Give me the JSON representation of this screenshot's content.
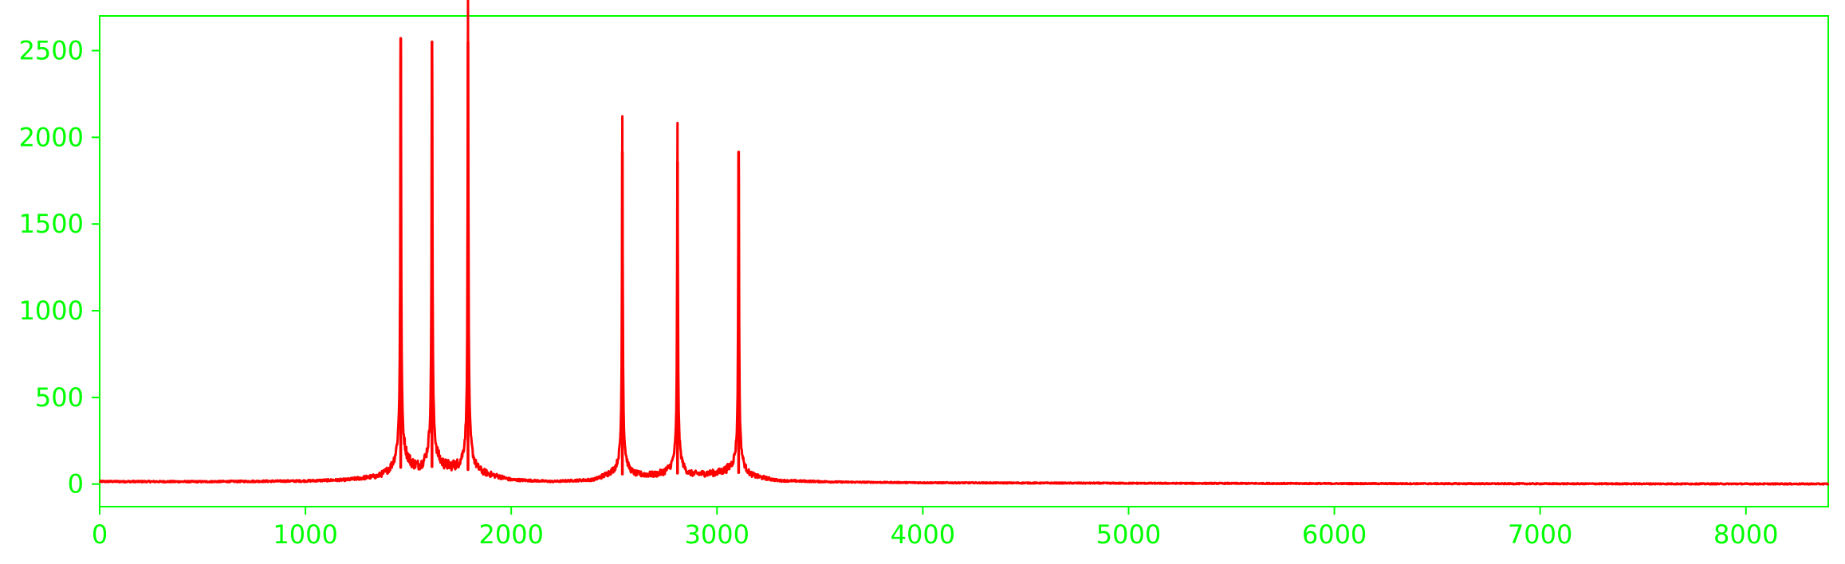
{
  "chart_data": {
    "type": "line",
    "title": "",
    "xlabel": "",
    "ylabel": "",
    "xlim": [
      0,
      8400
    ],
    "ylim": [
      -130,
      2700
    ],
    "x_ticks": [
      0,
      1000,
      2000,
      3000,
      4000,
      5000,
      6000,
      7000,
      8000
    ],
    "y_ticks": [
      0,
      500,
      1000,
      1500,
      2000,
      2500
    ],
    "grid": false,
    "legend": "none",
    "colors": {
      "line": "#ff0000",
      "axes": "#00ff00",
      "background": "#ffffff"
    },
    "series": [
      {
        "baseline": [
          [
            0,
            15
          ],
          [
            500,
            14
          ],
          [
            1000,
            18
          ],
          [
            1200,
            25
          ],
          [
            1350,
            45
          ],
          [
            1420,
            80
          ],
          [
            1500,
            110
          ],
          [
            1560,
            95
          ],
          [
            1650,
            105
          ],
          [
            1720,
            100
          ],
          [
            1850,
            70
          ],
          [
            2000,
            25
          ],
          [
            2200,
            15
          ],
          [
            2400,
            25
          ],
          [
            2480,
            60
          ],
          [
            2600,
            55
          ],
          [
            2700,
            55
          ],
          [
            2760,
            70
          ],
          [
            2860,
            55
          ],
          [
            3000,
            65
          ],
          [
            3060,
            80
          ],
          [
            3160,
            50
          ],
          [
            3300,
            20
          ],
          [
            3600,
            12
          ],
          [
            4000,
            8
          ],
          [
            5000,
            5
          ],
          [
            6000,
            3
          ],
          [
            7000,
            2
          ],
          [
            8400,
            1
          ]
        ],
        "peaks": [
          {
            "x": 1463,
            "y": 2570
          },
          {
            "x": 1615,
            "y": 2550
          },
          {
            "x": 1790,
            "y": 2550
          },
          {
            "x": 2540,
            "y": 1915
          },
          {
            "x": 2808,
            "y": 1855
          },
          {
            "x": 3105,
            "y": 1915
          }
        ]
      }
    ]
  }
}
